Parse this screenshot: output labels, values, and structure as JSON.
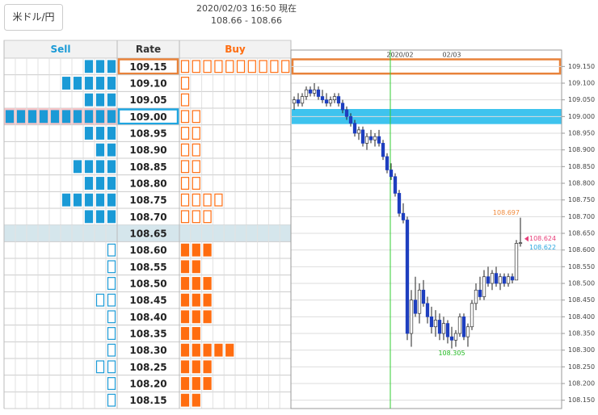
{
  "header": {
    "pair_button": "米ドル/円",
    "timestamp": "2020/02/03 16:50 現在",
    "price_range": "108.66 - 108.66"
  },
  "table": {
    "columns": [
      "Sell",
      "Rate",
      "Buy"
    ],
    "rows": [
      {
        "rate": "109.15",
        "sell": 3,
        "sell_style": "solid",
        "buy": 10,
        "buy_style": "hollow",
        "highlight": "orange"
      },
      {
        "rate": "109.10",
        "sell": 5,
        "sell_style": "solid",
        "buy": 1,
        "buy_style": "hollow"
      },
      {
        "rate": "109.05",
        "sell": 3,
        "sell_style": "solid",
        "buy": 1,
        "buy_style": "hollow"
      },
      {
        "rate": "109.00",
        "sell": 10,
        "sell_style": "solid",
        "buy": 2,
        "buy_style": "hollow",
        "highlight": "blue"
      },
      {
        "rate": "108.95",
        "sell": 3,
        "sell_style": "solid",
        "buy": 2,
        "buy_style": "hollow"
      },
      {
        "rate": "108.90",
        "sell": 2,
        "sell_style": "solid",
        "buy": 2,
        "buy_style": "hollow"
      },
      {
        "rate": "108.85",
        "sell": 4,
        "sell_style": "solid",
        "buy": 2,
        "buy_style": "hollow"
      },
      {
        "rate": "108.80",
        "sell": 3,
        "sell_style": "solid",
        "buy": 2,
        "buy_style": "hollow"
      },
      {
        "rate": "108.75",
        "sell": 5,
        "sell_style": "solid",
        "buy": 4,
        "buy_style": "hollow"
      },
      {
        "rate": "108.70",
        "sell": 3,
        "sell_style": "solid",
        "buy": 3,
        "buy_style": "hollow"
      },
      {
        "rate": "108.65",
        "sell": 0,
        "sell_style": "solid",
        "buy": 0,
        "buy_style": "solid",
        "highlight": "current"
      },
      {
        "rate": "108.60",
        "sell": 1,
        "sell_style": "hollow",
        "buy": 3,
        "buy_style": "solid"
      },
      {
        "rate": "108.55",
        "sell": 1,
        "sell_style": "hollow",
        "buy": 2,
        "buy_style": "solid"
      },
      {
        "rate": "108.50",
        "sell": 1,
        "sell_style": "hollow",
        "buy": 3,
        "buy_style": "solid"
      },
      {
        "rate": "108.45",
        "sell": 2,
        "sell_style": "hollow",
        "buy": 3,
        "buy_style": "solid"
      },
      {
        "rate": "108.40",
        "sell": 1,
        "sell_style": "hollow",
        "buy": 3,
        "buy_style": "solid"
      },
      {
        "rate": "108.35",
        "sell": 1,
        "sell_style": "hollow",
        "buy": 2,
        "buy_style": "solid"
      },
      {
        "rate": "108.30",
        "sell": 1,
        "sell_style": "hollow",
        "buy": 5,
        "buy_style": "solid"
      },
      {
        "rate": "108.25",
        "sell": 2,
        "sell_style": "hollow",
        "buy": 3,
        "buy_style": "solid"
      },
      {
        "rate": "108.20",
        "sell": 1,
        "sell_style": "hollow",
        "buy": 3,
        "buy_style": "solid"
      },
      {
        "rate": "108.15",
        "sell": 1,
        "sell_style": "hollow",
        "buy": 2,
        "buy_style": "solid"
      }
    ]
  },
  "chart_data": {
    "type": "candlestick",
    "x_labels": [
      "2020/02",
      "02/03"
    ],
    "candles": [
      [
        109.04,
        109.06,
        109.02,
        109.05
      ],
      [
        109.05,
        109.07,
        109.03,
        109.04
      ],
      [
        109.04,
        109.07,
        109.03,
        109.06
      ],
      [
        109.06,
        109.09,
        109.05,
        109.08
      ],
      [
        109.08,
        109.09,
        109.06,
        109.07
      ],
      [
        109.07,
        109.1,
        109.06,
        109.08
      ],
      [
        109.08,
        109.09,
        109.05,
        109.06
      ],
      [
        109.06,
        109.08,
        109.04,
        109.05
      ],
      [
        109.05,
        109.07,
        109.03,
        109.04
      ],
      [
        109.04,
        109.06,
        109.03,
        109.05
      ],
      [
        109.05,
        109.07,
        109.04,
        109.06
      ],
      [
        109.06,
        109.07,
        109.03,
        109.04
      ],
      [
        109.04,
        109.05,
        109.01,
        109.02
      ],
      [
        109.02,
        109.03,
        108.99,
        109.0
      ],
      [
        109.0,
        109.01,
        108.97,
        108.98
      ],
      [
        108.98,
        108.99,
        108.94,
        108.95
      ],
      [
        108.95,
        108.97,
        108.93,
        108.96
      ],
      [
        108.96,
        108.97,
        108.91,
        108.92
      ],
      [
        108.92,
        108.95,
        108.9,
        108.94
      ],
      [
        108.94,
        108.96,
        108.92,
        108.93
      ],
      [
        108.93,
        108.95,
        108.91,
        108.94
      ],
      [
        108.94,
        108.96,
        108.91,
        108.92
      ],
      [
        108.92,
        108.93,
        108.87,
        108.88
      ],
      [
        108.88,
        108.89,
        108.83,
        108.84
      ],
      [
        108.84,
        108.86,
        108.81,
        108.82
      ],
      [
        108.82,
        108.83,
        108.76,
        108.77
      ],
      [
        108.77,
        108.78,
        108.7,
        108.71
      ],
      [
        108.71,
        108.74,
        108.68,
        108.69
      ],
      [
        108.69,
        108.7,
        108.33,
        108.35
      ],
      [
        108.35,
        108.48,
        108.31,
        108.45
      ],
      [
        108.45,
        108.52,
        108.4,
        108.41
      ],
      [
        108.41,
        108.5,
        108.38,
        108.48
      ],
      [
        108.48,
        108.51,
        108.43,
        108.44
      ],
      [
        108.44,
        108.46,
        108.38,
        108.4
      ],
      [
        108.4,
        108.43,
        108.35,
        108.37
      ],
      [
        108.37,
        108.42,
        108.34,
        108.39
      ],
      [
        108.39,
        108.41,
        108.33,
        108.35
      ],
      [
        108.35,
        108.4,
        108.33,
        108.38
      ],
      [
        108.38,
        108.39,
        108.32,
        108.34
      ],
      [
        108.34,
        108.37,
        108.305,
        108.33
      ],
      [
        108.33,
        108.36,
        108.31,
        108.35
      ],
      [
        108.35,
        108.41,
        108.34,
        108.4
      ],
      [
        108.4,
        108.41,
        108.33,
        108.34
      ],
      [
        108.34,
        108.38,
        108.31,
        108.37
      ],
      [
        108.37,
        108.45,
        108.36,
        108.44
      ],
      [
        108.44,
        108.5,
        108.42,
        108.48
      ],
      [
        108.48,
        108.52,
        108.45,
        108.46
      ],
      [
        108.46,
        108.54,
        108.45,
        108.52
      ],
      [
        108.52,
        108.55,
        108.49,
        108.5
      ],
      [
        108.5,
        108.54,
        108.48,
        108.53
      ],
      [
        108.53,
        108.55,
        108.49,
        108.5
      ],
      [
        108.5,
        108.53,
        108.48,
        108.52
      ],
      [
        108.52,
        108.53,
        108.49,
        108.5
      ],
      [
        108.5,
        108.53,
        108.49,
        108.52
      ],
      [
        108.52,
        108.53,
        108.5,
        108.51
      ],
      [
        108.51,
        108.63,
        108.51,
        108.62
      ],
      [
        108.62,
        108.697,
        108.61,
        108.622
      ]
    ],
    "up_color": "#ffffff",
    "down_color": "#1e3fbf",
    "ylim": [
      108.15,
      109.15
    ],
    "yticks": [
      {
        "value": 109.15,
        "label": "109.150"
      },
      {
        "value": 109.1,
        "label": "109.100"
      },
      {
        "value": 109.05,
        "label": "109.050"
      },
      {
        "value": 109.0,
        "label": "109.000"
      },
      {
        "value": 108.95,
        "label": "108.950"
      },
      {
        "value": 108.9,
        "label": "108.900"
      },
      {
        "value": 108.85,
        "label": "108.850"
      },
      {
        "value": 108.8,
        "label": "108.800"
      },
      {
        "value": 108.75,
        "label": "108.750"
      },
      {
        "value": 108.7,
        "label": "108.700"
      },
      {
        "value": 108.65,
        "label": "108.650"
      },
      {
        "value": 108.6,
        "label": "108.600"
      },
      {
        "value": 108.55,
        "label": "108.550"
      },
      {
        "value": 108.5,
        "label": "108.500"
      },
      {
        "value": 108.45,
        "label": "108.450"
      },
      {
        "value": 108.4,
        "label": "108.400"
      },
      {
        "value": 108.35,
        "label": "108.350"
      },
      {
        "value": 108.3,
        "label": "108.300"
      },
      {
        "value": 108.25,
        "label": "108.250"
      },
      {
        "value": 108.2,
        "label": "108.200"
      },
      {
        "value": 108.15,
        "label": "108.150"
      }
    ],
    "grid": true,
    "annotations": [
      {
        "value": 108.697,
        "label": "108.697",
        "color": "#f08a3c"
      },
      {
        "value": 108.624,
        "label": "108.624",
        "color": "#e8407a"
      },
      {
        "value": 108.622,
        "label": "108.622",
        "color": "#2aa7e0"
      },
      {
        "value": 108.305,
        "label": "108.305",
        "color": "#22bb22"
      }
    ]
  }
}
